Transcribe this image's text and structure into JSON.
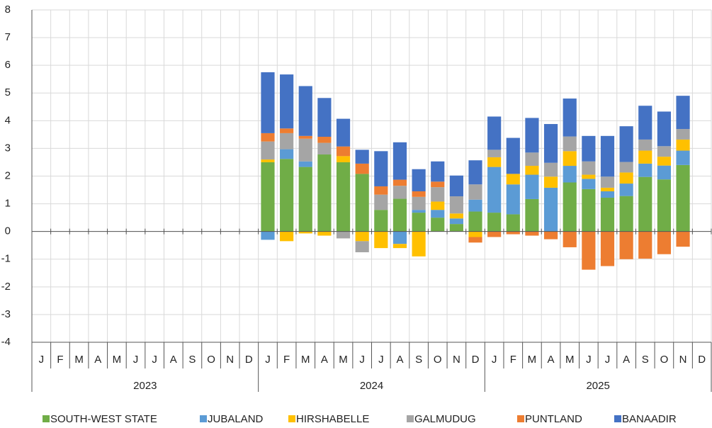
{
  "chart_data": {
    "type": "stacked_bar",
    "categories": [
      "J",
      "F",
      "M",
      "A",
      "M",
      "J",
      "J",
      "A",
      "S",
      "O",
      "N",
      "D",
      "J",
      "F",
      "M",
      "A",
      "M",
      "J",
      "J",
      "A",
      "S",
      "O",
      "N",
      "D",
      "J",
      "F",
      "M",
      "A",
      "M",
      "J",
      "J",
      "A",
      "S",
      "O",
      "N",
      "D"
    ],
    "years": [
      "2023",
      "2024",
      "2025"
    ],
    "ylim": [
      -4,
      8
    ],
    "yticks": [
      -4,
      -3,
      -2,
      -1,
      0,
      1,
      2,
      3,
      4,
      5,
      6,
      7,
      8
    ],
    "grid": true,
    "legend": "bottom",
    "series": [
      {
        "name": "SOUTH-WEST STATE",
        "color": "#70ad47",
        "values": [
          null,
          null,
          null,
          null,
          null,
          null,
          null,
          null,
          null,
          null,
          null,
          null,
          2.5,
          2.62,
          2.33,
          2.78,
          2.5,
          2.08,
          0.78,
          1.18,
          0.68,
          0.5,
          0.27,
          0.72,
          0.68,
          0.62,
          1.17,
          0,
          1.77,
          1.53,
          1.22,
          1.28,
          1.97,
          1.88,
          2.4,
          null
        ]
      },
      {
        "name": "JUBALAND",
        "color": "#5b9bd5",
        "values": [
          null,
          null,
          null,
          null,
          null,
          null,
          null,
          null,
          null,
          null,
          null,
          null,
          -0.3,
          0.35,
          0.2,
          0,
          0,
          0,
          0,
          -0.45,
          0.1,
          0.28,
          0.2,
          0.43,
          1.65,
          1.08,
          0.88,
          1.58,
          0.6,
          0.37,
          0.23,
          0.45,
          0.48,
          0.5,
          0.52,
          null
        ]
      },
      {
        "name": "HIRSHABELLE",
        "color": "#ffc000",
        "values": [
          null,
          null,
          null,
          null,
          null,
          null,
          null,
          null,
          null,
          null,
          null,
          null,
          0.1,
          -0.35,
          -0.07,
          -0.15,
          0.22,
          -0.35,
          -0.6,
          -0.15,
          -0.9,
          0.3,
          0.18,
          -0.2,
          0.35,
          0.38,
          0.32,
          0.4,
          0.53,
          0.15,
          0.13,
          0.4,
          0.47,
          0.32,
          0.4,
          null
        ]
      },
      {
        "name": "GALMUDUG",
        "color": "#a5a5a5",
        "values": [
          null,
          null,
          null,
          null,
          null,
          null,
          null,
          null,
          null,
          null,
          null,
          null,
          0.65,
          0.58,
          0.82,
          0.42,
          -0.25,
          -0.4,
          0.55,
          0.47,
          0.47,
          0.52,
          0.62,
          0.55,
          0.27,
          0,
          0.48,
          0.5,
          0.53,
          0.48,
          0.4,
          0.38,
          0.4,
          0.38,
          0.38,
          null
        ]
      },
      {
        "name": "PUNTLAND",
        "color": "#ed7d31",
        "values": [
          null,
          null,
          null,
          null,
          null,
          null,
          null,
          null,
          null,
          null,
          null,
          null,
          0.3,
          0.17,
          0.1,
          0.22,
          0.35,
          0.37,
          0.3,
          0.22,
          0.2,
          0.2,
          0,
          -0.2,
          -0.2,
          -0.1,
          -0.15,
          -0.28,
          -0.57,
          -1.38,
          -1.25,
          -1.0,
          -0.98,
          -0.82,
          -0.55,
          null
        ]
      },
      {
        "name": "BANAADIR",
        "color": "#4472c4",
        "values": [
          null,
          null,
          null,
          null,
          null,
          null,
          null,
          null,
          null,
          null,
          null,
          null,
          2.2,
          1.95,
          1.8,
          1.4,
          1.0,
          0.5,
          1.27,
          1.35,
          0.8,
          0.73,
          0.75,
          0.87,
          1.2,
          1.3,
          1.25,
          1.4,
          1.37,
          0.92,
          1.47,
          1.29,
          1.22,
          1.25,
          1.2,
          null
        ]
      }
    ]
  }
}
